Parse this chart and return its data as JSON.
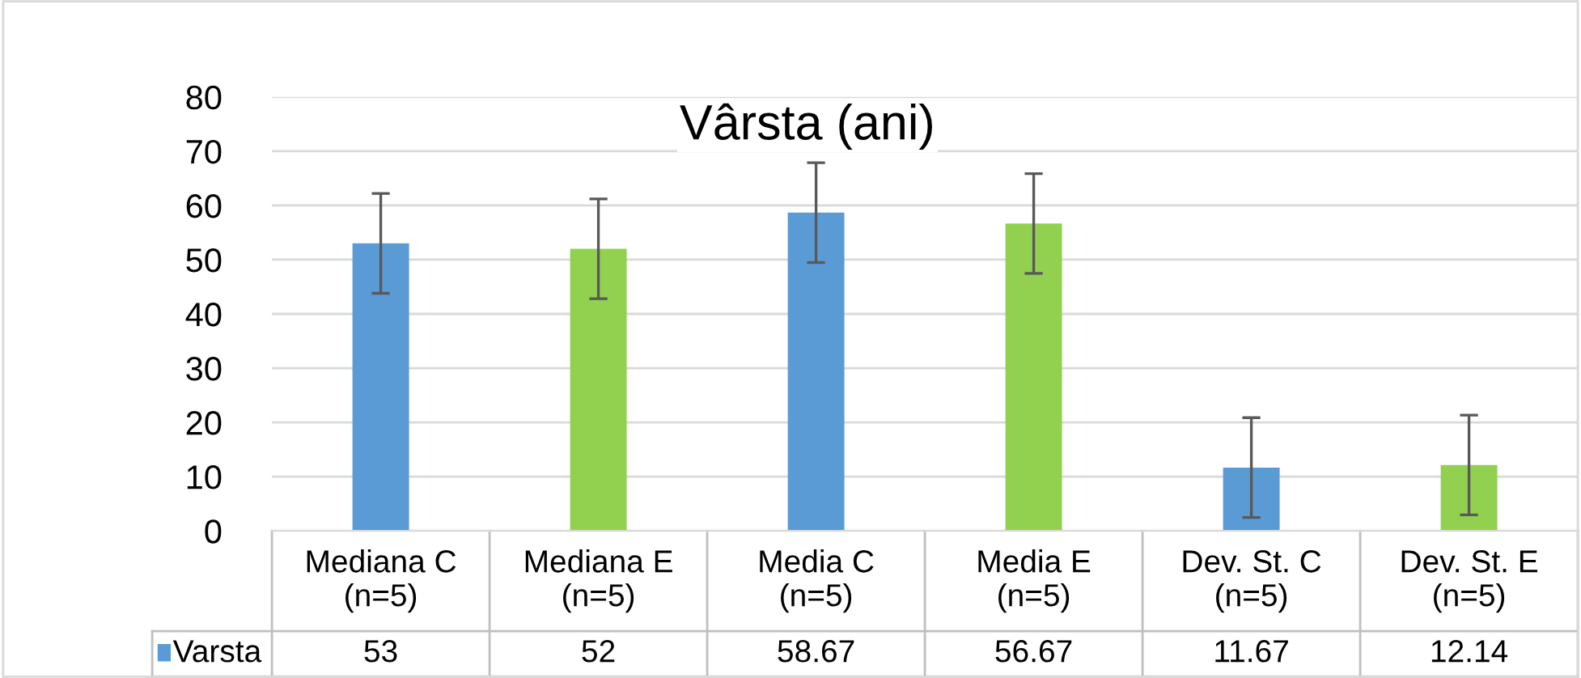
{
  "chart_data": {
    "type": "bar",
    "title": "Vârsta (ani)",
    "categories": [
      "Mediana C\n(n=5)",
      "Mediana E\n(n=5)",
      "Media C\n(n=5)",
      "Media E\n(n=5)",
      "Dev. St. C\n(n=5)",
      "Dev. St. E\n(n=5)"
    ],
    "series": [
      {
        "name": "Varsta",
        "color": "#5b9bd5",
        "colors": [
          "#5b9bd5",
          "#92d050",
          "#5b9bd5",
          "#92d050",
          "#5b9bd5",
          "#92d050"
        ],
        "values": [
          53,
          52,
          58.67,
          56.67,
          11.67,
          12.14
        ],
        "errors": [
          9.2,
          9.2,
          9.2,
          9.2,
          9.2,
          9.2
        ]
      }
    ],
    "ylim": [
      0,
      80
    ],
    "yticks": [
      0,
      10,
      20,
      30,
      40,
      50,
      60,
      70,
      80
    ],
    "grid": "y",
    "data_labels": true,
    "legend": "bottom"
  }
}
